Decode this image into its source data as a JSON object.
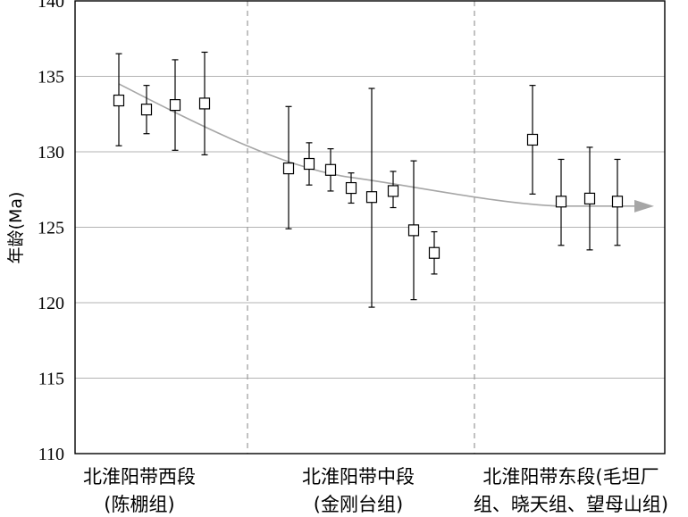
{
  "chart_data": {
    "type": "scatter",
    "title": "",
    "ylabel": "年龄(Ma)",
    "xlabel": "",
    "ylim": [
      110,
      140
    ],
    "yticks": [
      110,
      115,
      120,
      125,
      130,
      135,
      140
    ],
    "grid": true,
    "groups": [
      {
        "label_lines": [
          "北淮阳带西段",
          "(陈棚组)"
        ],
        "points": [
          {
            "value": 133.4,
            "upper": 136.5,
            "lower": 130.4
          },
          {
            "value": 132.8,
            "upper": 134.4,
            "lower": 131.2
          },
          {
            "value": 133.1,
            "upper": 136.1,
            "lower": 130.1
          },
          {
            "value": 133.2,
            "upper": 136.6,
            "lower": 129.8
          }
        ]
      },
      {
        "label_lines": [
          "北淮阳带中段",
          "(金刚台组)"
        ],
        "points": [
          {
            "value": 128.9,
            "upper": 133.0,
            "lower": 124.9
          },
          {
            "value": 129.2,
            "upper": 130.6,
            "lower": 127.8
          },
          {
            "value": 128.8,
            "upper": 130.2,
            "lower": 127.4
          },
          {
            "value": 127.6,
            "upper": 128.6,
            "lower": 126.6
          },
          {
            "value": 127.0,
            "upper": 134.2,
            "lower": 119.7
          },
          {
            "value": 127.4,
            "upper": 128.7,
            "lower": 126.3
          },
          {
            "value": 124.8,
            "upper": 129.4,
            "lower": 120.2
          },
          {
            "value": 123.3,
            "upper": 124.7,
            "lower": 121.9
          }
        ]
      },
      {
        "label_lines": [
          "北淮阳带东段(毛坦厂",
          "组、晓天组、望母山组)"
        ],
        "points": [
          {
            "value": 130.8,
            "upper": 134.4,
            "lower": 127.2
          },
          {
            "value": 126.7,
            "upper": 129.5,
            "lower": 123.8
          },
          {
            "value": 126.9,
            "upper": 130.3,
            "lower": 123.5
          },
          {
            "value": 126.7,
            "upper": 129.5,
            "lower": 123.8
          }
        ]
      }
    ],
    "trend": {
      "description": "",
      "points": [
        {
          "group": 0,
          "index": 0,
          "value": 134.5
        },
        {
          "group": 1,
          "index": 3,
          "value": 128.3
        },
        {
          "group": 2,
          "index": 1,
          "value": 126.4
        },
        {
          "group": 2,
          "index": 3,
          "value": 126.4
        }
      ]
    },
    "colors": {
      "axis": "#000000",
      "grid": "#b3b3b3",
      "separator": "#9a9a9a",
      "trend": "#a6a6a6",
      "marker_fill": "#ffffff",
      "marker_stroke": "#000000"
    }
  }
}
